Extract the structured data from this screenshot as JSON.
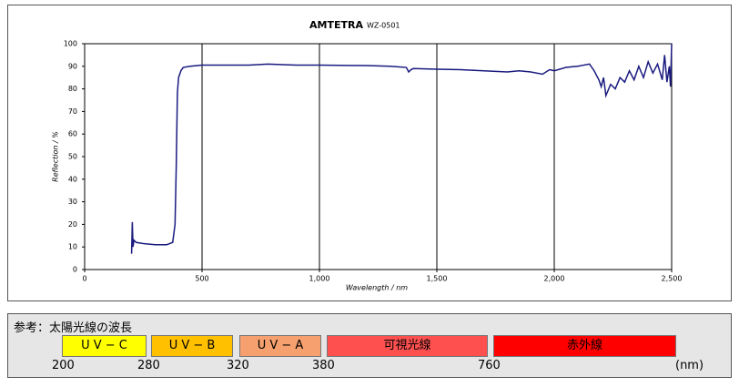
{
  "chart_data": {
    "type": "line",
    "title": "AMTETRA",
    "model": "WZ-0501",
    "x_label": "Wavelength / nm",
    "y_label": "Reflection / %",
    "xlim": [
      0,
      2500
    ],
    "ylim": [
      0,
      100
    ],
    "xticks": [
      0,
      500,
      {
        "value": 1000,
        "label": "1,000"
      },
      {
        "value": 1500,
        "label": "1,500"
      },
      {
        "value": 2000,
        "label": "2,000"
      },
      {
        "value": 2500,
        "label": "2,500"
      }
    ],
    "yticks": [
      0,
      10,
      20,
      30,
      40,
      50,
      60,
      70,
      80,
      90,
      100
    ],
    "grid": true,
    "series": [
      {
        "name": "WZ-0501",
        "color": "#1a1a80",
        "x": [
          200,
          203,
          206,
          210,
          220,
          250,
          300,
          350,
          375,
          385,
          390,
          395,
          400,
          410,
          420,
          450,
          500,
          600,
          700,
          780,
          900,
          1000,
          1200,
          1300,
          1370,
          1380,
          1390,
          1400,
          1500,
          1600,
          1700,
          1800,
          1850,
          1900,
          1950,
          1980,
          2000,
          2050,
          2100,
          2150,
          2170,
          2190,
          2200,
          2210,
          2220,
          2240,
          2260,
          2280,
          2300,
          2320,
          2340,
          2360,
          2380,
          2400,
          2420,
          2440,
          2460,
          2470,
          2480,
          2490,
          2495,
          2500
        ],
        "values": [
          7,
          21,
          10,
          13,
          12,
          11.5,
          11,
          11,
          12,
          20,
          45,
          78,
          85,
          88,
          89.5,
          90,
          90.5,
          90.5,
          90.5,
          91,
          90.5,
          90.5,
          90.3,
          90,
          89.5,
          87.5,
          88.5,
          89,
          88.7,
          88.5,
          88,
          87.5,
          88,
          87.5,
          86.5,
          88.5,
          88,
          89.5,
          90,
          91,
          88,
          84,
          81,
          85,
          77,
          82,
          80,
          85,
          83,
          88,
          84,
          90,
          85,
          92,
          87,
          91,
          84,
          95,
          83,
          90,
          81,
          100
        ]
      }
    ]
  },
  "reference": {
    "title": "参考：太陽光線の波長",
    "bands": [
      {
        "label": "U V − C",
        "color": "#ffff00"
      },
      {
        "label": "U V − B",
        "color": "#ffc000"
      },
      {
        "label": "U V − A",
        "color": "#f5a06e"
      },
      {
        "label": "可視光線",
        "color": "#ff5050"
      },
      {
        "label": "赤外線",
        "color": "#ff0000"
      }
    ],
    "boundaries": [
      200,
      280,
      320,
      380,
      760
    ],
    "unit": "(nm)"
  }
}
